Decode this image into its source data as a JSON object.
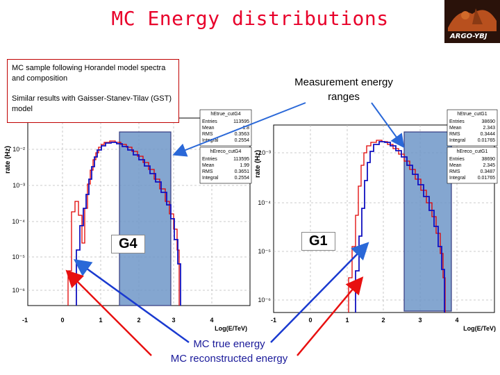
{
  "slide": {
    "title": "MC Energy distributions",
    "logo_text": "ARGO-YBJ",
    "info_lines": [
      "MC sample following Horandel model spectra and composition",
      "Similar results with Gaisser-Stanev-Tilav (GST) model"
    ],
    "measurement_label": "Measurement energy ranges",
    "legend_true": "MC true energy",
    "legend_reco": "MC reconstructed energy",
    "colors": {
      "title": "#e8002a",
      "true_line": "#e00000",
      "reco_line": "#1010c0",
      "band": "#6f96c8",
      "arrow_blue": "#2a68d8",
      "arrow_red": "#e81010"
    },
    "icons": [
      "arrow-red-icon",
      "arrow-blue-icon"
    ]
  },
  "left_plot": {
    "panel": "G4",
    "ylabel": "rate (Hz)",
    "xlabel": "Log(E/TeV)",
    "x_ticks": [
      "-1",
      "0",
      "1",
      "2",
      "3",
      "4"
    ],
    "y_ticks": [
      "10⁻²",
      "10⁻³",
      "10⁻⁴",
      "10⁻⁵",
      "10⁻⁶"
    ],
    "stats_true": {
      "title": "hEtrue_cutG4",
      "rows": [
        [
          "Entries",
          "113595"
        ],
        [
          "Mean",
          "1.8"
        ],
        [
          "RMS",
          "0.3563"
        ],
        [
          "Integral",
          "0.2554"
        ]
      ]
    },
    "stats_reco": {
      "title": "hEreco_cutG4",
      "rows": [
        [
          "Entries",
          "113595"
        ],
        [
          "Mean",
          "1.99"
        ],
        [
          "RMS",
          "0.3651"
        ],
        [
          "Integral",
          "0.2554"
        ]
      ]
    }
  },
  "right_plot": {
    "panel": "G1",
    "ylabel": "rate (Hz)",
    "xlabel": "Log(E/TeV)",
    "x_ticks": [
      "-1",
      "0",
      "1",
      "2",
      "3",
      "4"
    ],
    "y_ticks": [
      "10⁻³",
      "10⁻⁴",
      "10⁻⁵",
      "10⁻⁶"
    ],
    "stats_true": {
      "title": "hEtrue_cutG1",
      "rows": [
        [
          "Entries",
          "38690"
        ],
        [
          "Mean",
          "2.343"
        ],
        [
          "RMS",
          "0.3444"
        ],
        [
          "Integral",
          "0.01765"
        ]
      ]
    },
    "stats_reco": {
      "title": "hEreco_cutG1",
      "rows": [
        [
          "Entries",
          "38690"
        ],
        [
          "Mean",
          "2.345"
        ],
        [
          "RMS",
          "0.3487"
        ],
        [
          "Integral",
          "0.01765"
        ]
      ]
    }
  }
}
